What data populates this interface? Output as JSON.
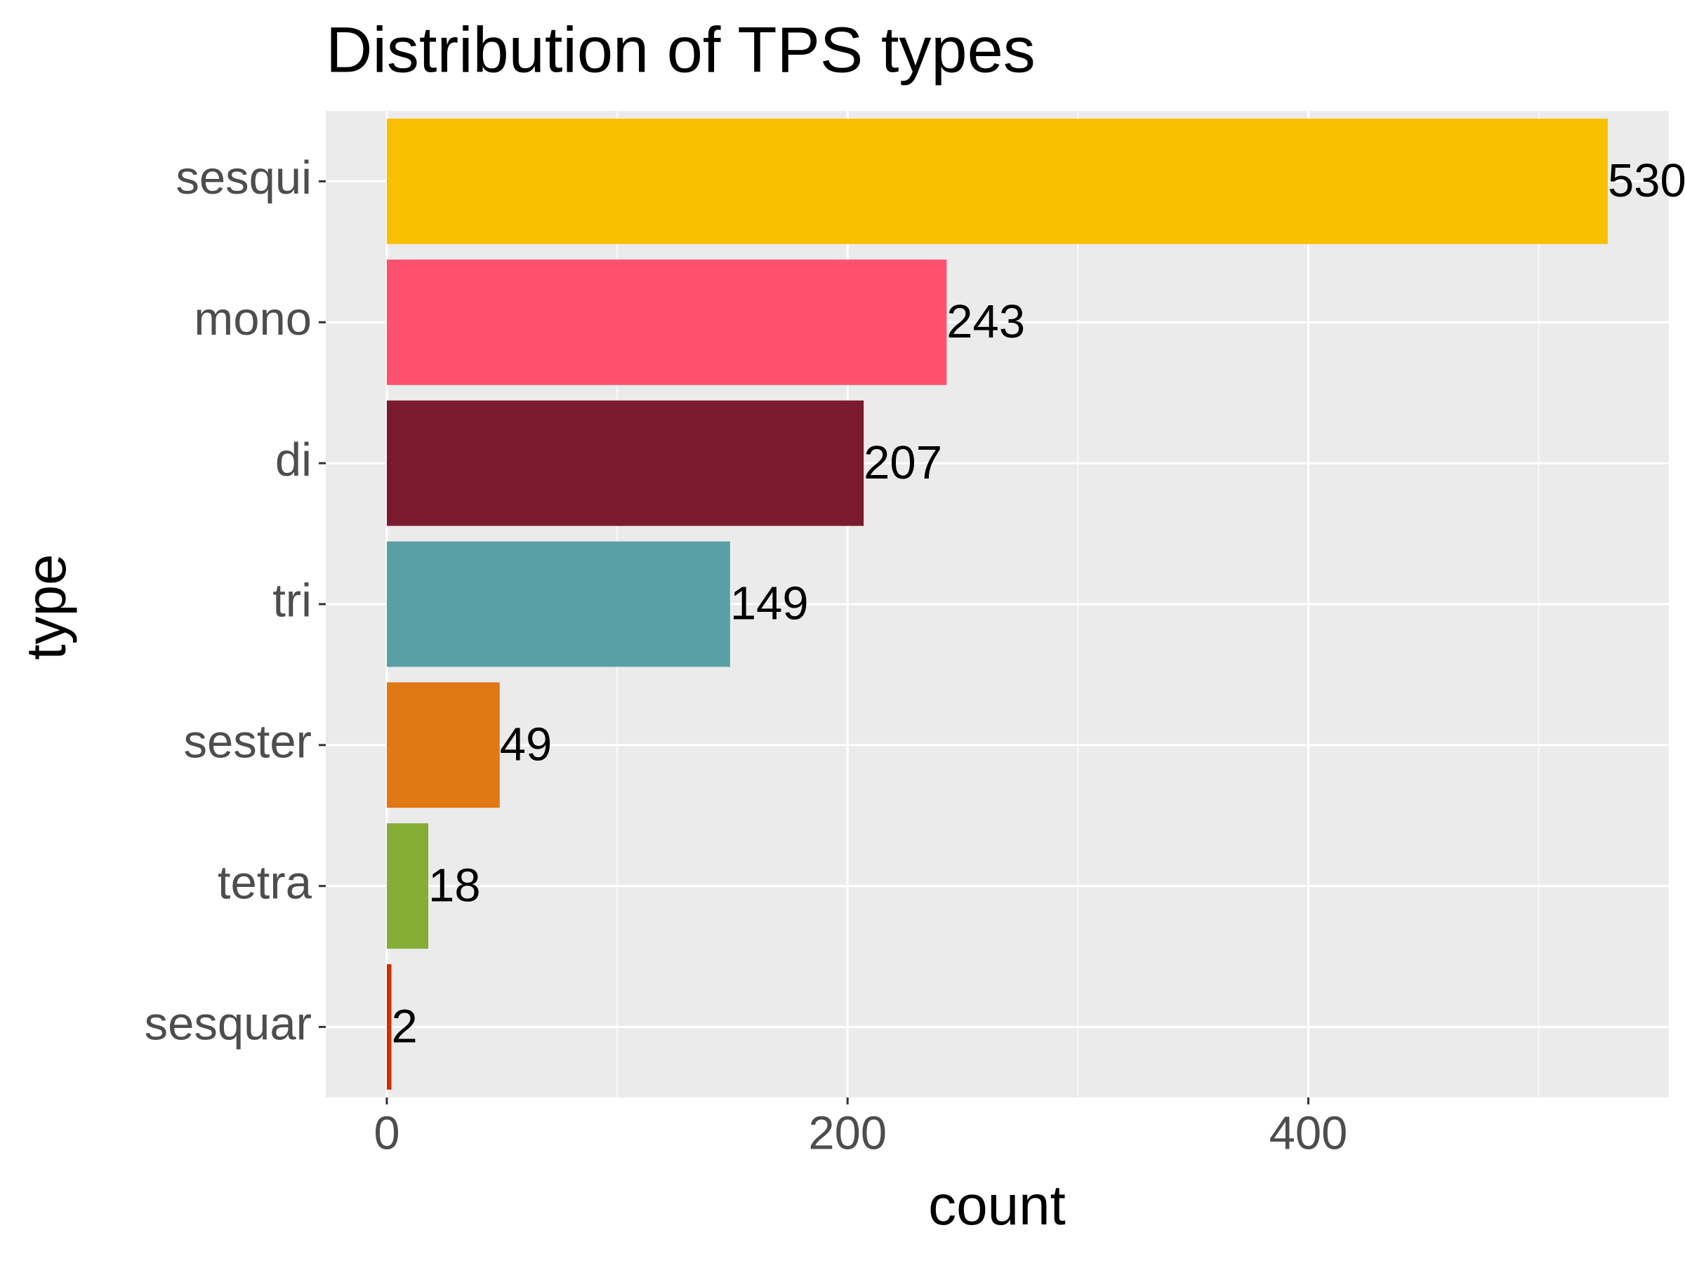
{
  "chart_data": {
    "type": "bar",
    "orientation": "horizontal",
    "title": "Distribution of TPS types",
    "x_label": "count",
    "y_label": "type",
    "categories": [
      "sesqui",
      "mono",
      "di",
      "tri",
      "sester",
      "tetra",
      "sesquar"
    ],
    "values": [
      530,
      243,
      207,
      149,
      49,
      18,
      2
    ],
    "colors": [
      "#f8c000",
      "#ff5070",
      "#7b1a2f",
      "#5a9fa6",
      "#e07814",
      "#86ae36",
      "#c83200"
    ],
    "xlim": [
      -26.5,
      556.5
    ],
    "xticks": [
      0,
      200,
      400
    ],
    "grid": true
  }
}
